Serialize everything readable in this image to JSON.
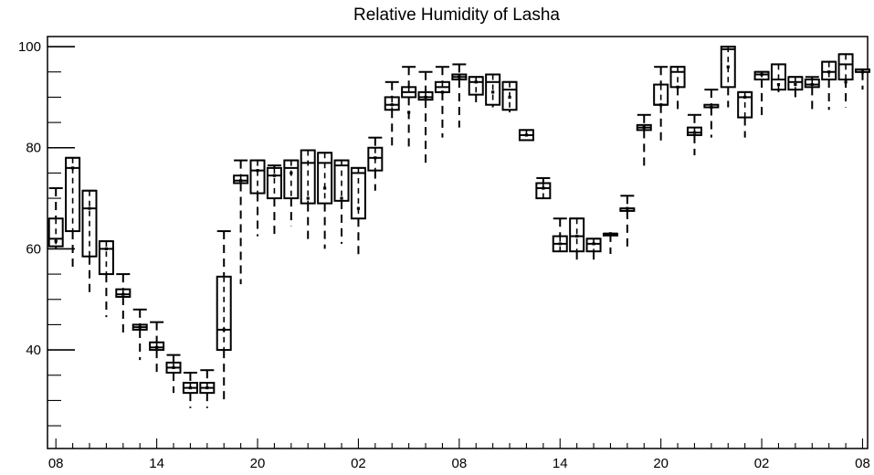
{
  "chart_data": {
    "type": "box",
    "title": "Relative Humidity of Lasha",
    "xlabel": "",
    "ylabel": "",
    "ylim": [
      20.5,
      102
    ],
    "xlim": [
      -0.5,
      48.3
    ],
    "grid": false,
    "legend": "none",
    "y_ticks": [
      40,
      60,
      80,
      100
    ],
    "x_ticks": [
      {
        "index": 0,
        "label": "08"
      },
      {
        "index": 6,
        "label": "14"
      },
      {
        "index": 12,
        "label": "20"
      },
      {
        "index": 18,
        "label": "02"
      },
      {
        "index": 24,
        "label": "08"
      },
      {
        "index": 30,
        "label": "14"
      },
      {
        "index": 36,
        "label": "20"
      },
      {
        "index": 42,
        "label": "02"
      },
      {
        "index": 48,
        "label": "08"
      }
    ],
    "boxes": [
      {
        "i": 0,
        "max": 72.0,
        "q3": 66.0,
        "median": 62.0,
        "q1": 60.5,
        "min": 60.0,
        "mean": 61.5
      },
      {
        "i": 1,
        "max": 78.0,
        "q3": 78.0,
        "median": 76.0,
        "q1": 63.5,
        "min": 56.0,
        "mean": 76.0
      },
      {
        "i": 2,
        "max": 71.5,
        "q3": 71.5,
        "median": 68.0,
        "q1": 58.5,
        "min": 50.5,
        "mean": 68.0
      },
      {
        "i": 3,
        "max": 61.5,
        "q3": 61.5,
        "median": 60.0,
        "q1": 55.0,
        "min": 46.5,
        "mean": 60.0
      },
      {
        "i": 4,
        "max": 55.0,
        "q3": 52.0,
        "median": 51.0,
        "q1": 50.5,
        "min": 43.0,
        "mean": 51.0
      },
      {
        "i": 5,
        "max": 48.0,
        "q3": 45.0,
        "median": 44.5,
        "q1": 44.0,
        "min": 38.0,
        "mean": 44.5
      },
      {
        "i": 6,
        "max": 45.5,
        "q3": 41.5,
        "median": 40.5,
        "q1": 40.0,
        "min": 35.0,
        "mean": 40.5
      },
      {
        "i": 7,
        "max": 39.0,
        "q3": 37.5,
        "median": 36.5,
        "q1": 35.5,
        "min": 31.5,
        "mean": 36.5
      },
      {
        "i": 8,
        "max": 35.5,
        "q3": 33.5,
        "median": 32.5,
        "q1": 31.5,
        "min": 28.5,
        "mean": 32.5
      },
      {
        "i": 9,
        "max": 36.0,
        "q3": 33.5,
        "median": 32.5,
        "q1": 31.5,
        "min": 28.5,
        "mean": 32.5
      },
      {
        "i": 10,
        "max": 63.5,
        "q3": 54.5,
        "median": 44.0,
        "q1": 40.0,
        "min": 30.0,
        "mean": 44.0
      },
      {
        "i": 11,
        "max": 77.5,
        "q3": 74.5,
        "median": 73.5,
        "q1": 73.0,
        "min": 53.0,
        "mean": 73.5
      },
      {
        "i": 12,
        "max": 77.5,
        "q3": 77.5,
        "median": 75.5,
        "q1": 71.0,
        "min": 62.5,
        "mean": 75.5
      },
      {
        "i": 13,
        "max": 76.5,
        "q3": 76.0,
        "median": 74.5,
        "q1": 70.0,
        "min": 62.0,
        "mean": 74.5
      },
      {
        "i": 14,
        "max": 77.5,
        "q3": 77.5,
        "median": 76.0,
        "q1": 70.0,
        "min": 64.5,
        "mean": 75.0
      },
      {
        "i": 15,
        "max": 79.5,
        "q3": 79.5,
        "median": 77.0,
        "q1": 69.0,
        "min": 61.5,
        "mean": 70.0
      },
      {
        "i": 16,
        "max": 79.0,
        "q3": 79.0,
        "median": 77.0,
        "q1": 69.0,
        "min": 60.0,
        "mean": 72.0
      },
      {
        "i": 17,
        "max": 77.5,
        "q3": 77.5,
        "median": 76.5,
        "q1": 69.5,
        "min": 61.0,
        "mean": 70.0
      },
      {
        "i": 18,
        "max": 76.0,
        "q3": 76.0,
        "median": 75.0,
        "q1": 66.0,
        "min": 58.5,
        "mean": 68.0
      },
      {
        "i": 19,
        "max": 82.0,
        "q3": 80.0,
        "median": 78.0,
        "q1": 75.5,
        "min": 71.5,
        "mean": 78.0
      },
      {
        "i": 20,
        "max": 93.0,
        "q3": 90.0,
        "median": 88.5,
        "q1": 87.5,
        "min": 80.0,
        "mean": 88.5
      },
      {
        "i": 21,
        "max": 96.0,
        "q3": 92.0,
        "median": 91.0,
        "q1": 90.0,
        "min": 80.0,
        "mean": 87.0
      },
      {
        "i": 22,
        "max": 95.0,
        "q3": 91.0,
        "median": 90.0,
        "q1": 89.5,
        "min": 77.0,
        "mean": 90.0
      },
      {
        "i": 23,
        "max": 96.0,
        "q3": 93.0,
        "median": 92.0,
        "q1": 91.0,
        "min": 82.0,
        "mean": 91.0
      },
      {
        "i": 24,
        "max": 96.5,
        "q3": 94.5,
        "median": 94.0,
        "q1": 93.5,
        "min": 84.0,
        "mean": 94.0
      },
      {
        "i": 25,
        "max": 94.0,
        "q3": 94.0,
        "median": 93.0,
        "q1": 90.5,
        "min": 89.0,
        "mean": 93.0
      },
      {
        "i": 26,
        "max": 94.5,
        "q3": 94.5,
        "median": 93.0,
        "q1": 88.5,
        "min": 88.0,
        "mean": 91.0
      },
      {
        "i": 27,
        "max": 93.0,
        "q3": 93.0,
        "median": 91.5,
        "q1": 87.5,
        "min": 87.0,
        "mean": 90.0
      },
      {
        "i": 28,
        "max": 83.5,
        "q3": 83.5,
        "median": 82.5,
        "q1": 81.5,
        "min": 81.5,
        "mean": 82.5
      },
      {
        "i": 29,
        "max": 74.0,
        "q3": 73.0,
        "median": 72.0,
        "q1": 70.0,
        "min": 70.0,
        "mean": 72.0
      },
      {
        "i": 30,
        "max": 66.0,
        "q3": 62.5,
        "median": 61.0,
        "q1": 59.5,
        "min": 59.5,
        "mean": 61.0
      },
      {
        "i": 31,
        "max": 66.0,
        "q3": 66.0,
        "median": 62.5,
        "q1": 59.5,
        "min": 57.0,
        "mean": 62.5
      },
      {
        "i": 32,
        "max": 62.0,
        "q3": 62.0,
        "median": 61.0,
        "q1": 59.5,
        "min": 57.0,
        "mean": 61.0
      },
      {
        "i": 33,
        "max": 63.0,
        "q3": 63.0,
        "median": 63.0,
        "q1": 63.0,
        "min": 59.0,
        "mean": 63.0
      },
      {
        "i": 34,
        "max": 70.5,
        "q3": 68.0,
        "median": 68.0,
        "q1": 67.5,
        "min": 60.0,
        "mean": 68.0
      },
      {
        "i": 35,
        "max": 86.5,
        "q3": 84.5,
        "median": 84.0,
        "q1": 83.5,
        "min": 76.0,
        "mean": 84.0
      },
      {
        "i": 36,
        "max": 96.0,
        "q3": 92.5,
        "median": 88.5,
        "q1": 88.5,
        "min": 81.0,
        "mean": 88.5
      },
      {
        "i": 37,
        "max": 96.0,
        "q3": 96.0,
        "median": 95.0,
        "q1": 92.0,
        "min": 87.0,
        "mean": 92.0
      },
      {
        "i": 38,
        "max": 86.5,
        "q3": 84.0,
        "median": 83.0,
        "q1": 82.5,
        "min": 78.5,
        "mean": 83.0
      },
      {
        "i": 39,
        "max": 91.5,
        "q3": 88.5,
        "median": 88.0,
        "q1": 88.0,
        "min": 82.0,
        "mean": 88.0
      },
      {
        "i": 40,
        "max": 100.0,
        "q3": 100.0,
        "median": 99.5,
        "q1": 92.0,
        "min": 88.0,
        "mean": 96.0
      },
      {
        "i": 41,
        "max": 91.0,
        "q3": 91.0,
        "median": 90.0,
        "q1": 86.0,
        "min": 82.0,
        "mean": 90.0
      },
      {
        "i": 42,
        "max": 95.0,
        "q3": 95.0,
        "median": 94.5,
        "q1": 93.5,
        "min": 85.5,
        "mean": 94.5
      },
      {
        "i": 43,
        "max": 96.5,
        "q3": 96.5,
        "median": 93.5,
        "q1": 91.5,
        "min": 91.0,
        "mean": 92.5
      },
      {
        "i": 44,
        "max": 94.0,
        "q3": 94.0,
        "median": 93.0,
        "q1": 91.5,
        "min": 90.0,
        "mean": 92.5
      },
      {
        "i": 45,
        "max": 94.0,
        "q3": 93.5,
        "median": 92.5,
        "q1": 92.0,
        "min": 87.5,
        "mean": 92.5
      },
      {
        "i": 46,
        "max": 97.0,
        "q3": 97.0,
        "median": 95.0,
        "q1": 93.5,
        "min": 87.5,
        "mean": 95.0
      },
      {
        "i": 47,
        "max": 98.5,
        "q3": 98.5,
        "median": 96.5,
        "q1": 93.5,
        "min": 88.0,
        "mean": 93.0
      },
      {
        "i": 48,
        "max": 95.5,
        "q3": 95.5,
        "median": 95.0,
        "q1": 95.0,
        "min": 91.5,
        "mean": 95.0
      }
    ]
  }
}
